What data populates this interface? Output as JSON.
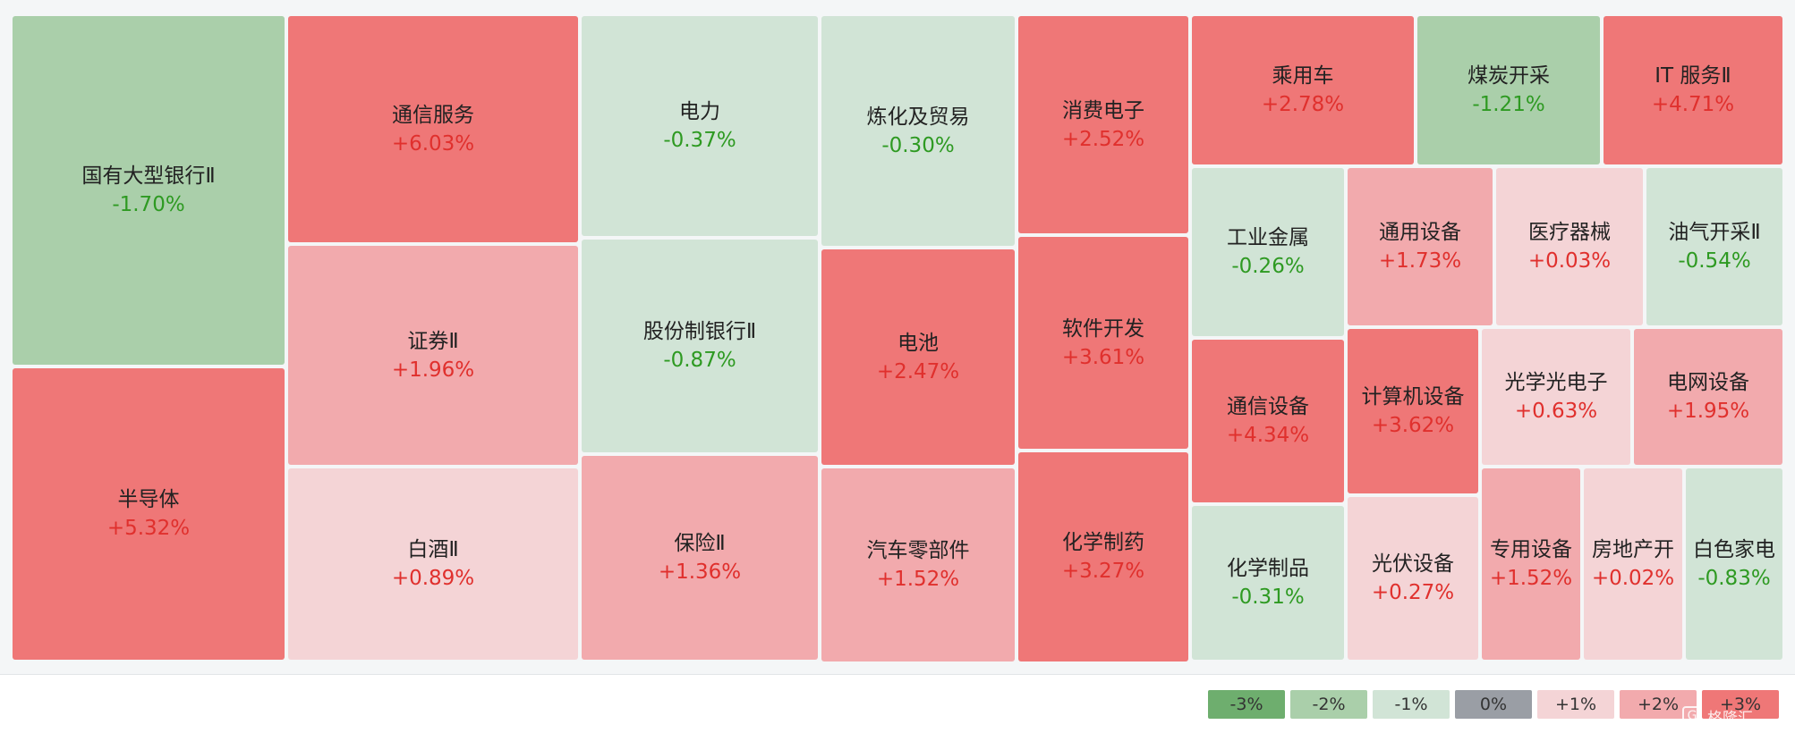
{
  "chart_data": {
    "type": "treemap",
    "title": "",
    "value_format": "percent_change",
    "cells": [
      {
        "name": "国有大型银行Ⅱ",
        "change": "-1.70%",
        "value": -1.7
      },
      {
        "name": "半导体",
        "change": "+5.32%",
        "value": 5.32
      },
      {
        "name": "通信服务",
        "change": "+6.03%",
        "value": 6.03
      },
      {
        "name": "证券Ⅱ",
        "change": "+1.96%",
        "value": 1.96
      },
      {
        "name": "白酒Ⅱ",
        "change": "+0.89%",
        "value": 0.89
      },
      {
        "name": "电力",
        "change": "-0.37%",
        "value": -0.37
      },
      {
        "name": "股份制银行Ⅱ",
        "change": "-0.87%",
        "value": -0.87
      },
      {
        "name": "保险Ⅱ",
        "change": "+1.36%",
        "value": 1.36
      },
      {
        "name": "炼化及贸易",
        "change": "-0.30%",
        "value": -0.3
      },
      {
        "name": "电池",
        "change": "+2.47%",
        "value": 2.47
      },
      {
        "name": "汽车零部件",
        "change": "+1.52%",
        "value": 1.52
      },
      {
        "name": "消费电子",
        "change": "+2.52%",
        "value": 2.52
      },
      {
        "name": "软件开发",
        "change": "+3.61%",
        "value": 3.61
      },
      {
        "name": "化学制药",
        "change": "+3.27%",
        "value": 3.27
      },
      {
        "name": "乘用车",
        "change": "+2.78%",
        "value": 2.78
      },
      {
        "name": "煤炭开采",
        "change": "-1.21%",
        "value": -1.21
      },
      {
        "name": "IT 服务Ⅱ",
        "change": "+4.71%",
        "value": 4.71
      },
      {
        "name": "工业金属",
        "change": "-0.26%",
        "value": -0.26
      },
      {
        "name": "通用设备",
        "change": "+1.73%",
        "value": 1.73
      },
      {
        "name": "医疗器械",
        "change": "+0.03%",
        "value": 0.03
      },
      {
        "name": "油气开采Ⅱ",
        "change": "-0.54%",
        "value": -0.54
      },
      {
        "name": "通信设备",
        "change": "+4.34%",
        "value": 4.34
      },
      {
        "name": "计算机设备",
        "change": "+3.62%",
        "value": 3.62
      },
      {
        "name": "光学光电子",
        "change": "+0.63%",
        "value": 0.63
      },
      {
        "name": "电网设备",
        "change": "+1.95%",
        "value": 1.95
      },
      {
        "name": "化学制品",
        "change": "-0.31%",
        "value": -0.31
      },
      {
        "name": "光伏设备",
        "change": "+0.27%",
        "value": 0.27
      },
      {
        "name": "专用设备",
        "change": "+1.52%",
        "value": 1.52
      },
      {
        "name": "房地产开",
        "change": "+0.02%",
        "value": 0.02
      },
      {
        "name": "白色家电",
        "change": "-0.83%",
        "value": -0.83
      }
    ],
    "legend": [
      {
        "label": "-3%",
        "color": "#6eae6e"
      },
      {
        "label": "-2%",
        "color": "#aacfaa"
      },
      {
        "label": "-1%",
        "color": "#d1e4d6"
      },
      {
        "label": "0%",
        "color": "#9a9ea5"
      },
      {
        "label": "+1%",
        "color": "#f4d4d6"
      },
      {
        "label": "+2%",
        "color": "#f2aaad"
      },
      {
        "label": "+3%",
        "color": "#ef7777"
      }
    ]
  },
  "watermark": {
    "text": "格隆汇",
    "logo": "G"
  }
}
